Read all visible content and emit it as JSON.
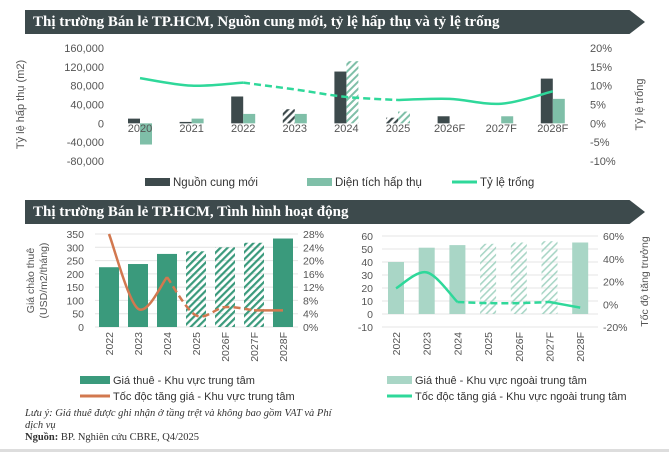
{
  "banners": {
    "top": "Thị trường Bán lẻ TP.HCM, Nguồn cung mới, tỷ lệ hấp thụ và tỷ lệ trống",
    "bottom": "Thị trường Bán lẻ TP.HCM, Tình hình hoạt động"
  },
  "notes": {
    "note": "Lưu ý: Giá thuê được ghi nhận ở tầng trệt và không bao gồm VAT và Phí dịch vụ",
    "source_label": "Nguồn:",
    "source": "BP. Nghiên cứu CBRE, Q4/2025"
  },
  "colors": {
    "dark": "#3d4a4c",
    "teal": "#7fbfa8",
    "mint": "#2fd89a",
    "green": "#3a9a7c",
    "lightgreen": "#a9d6c6",
    "orange": "#d2784f"
  },
  "chart_data": [
    {
      "type": "bar",
      "title": "Thị trường Bán lẻ TP.HCM, Nguồn cung mới, tỷ lệ hấp thụ và tỷ lệ trống",
      "categories": [
        "2020",
        "2021",
        "2022",
        "2023",
        "2024",
        "2025",
        "2026F",
        "2027F",
        "2028F"
      ],
      "ylabel": "Tỷ lệ hấp thụ (m2)",
      "y2label": "Tỷ lệ trống",
      "ylim": [
        -80000,
        160000
      ],
      "yticks": [
        "160,000",
        "120,000",
        "80,000",
        "40,000",
        "0",
        "-40,000",
        "-80,000"
      ],
      "y2lim": [
        -10,
        20
      ],
      "y2ticks": [
        "20%",
        "15%",
        "10%",
        "5%",
        "0%",
        "-5%",
        "-10%"
      ],
      "series": [
        {
          "name": "Nguồn cung mới",
          "kind": "bar",
          "values": [
            10000,
            3000,
            57000,
            30000,
            110000,
            12000,
            15000,
            0,
            95000
          ],
          "hatched": [
            false,
            false,
            false,
            true,
            false,
            true,
            false,
            false,
            false
          ]
        },
        {
          "name": "Diện tích hấp thụ",
          "kind": "bar",
          "values": [
            -45000,
            10000,
            20000,
            20000,
            132000,
            25000,
            0,
            15000,
            52000
          ],
          "hatched": [
            false,
            false,
            false,
            false,
            true,
            true,
            false,
            false,
            false
          ]
        },
        {
          "name": "Tỷ lệ trống",
          "kind": "line",
          "axis": "right",
          "values": [
            12,
            10,
            10.8,
            9,
            7,
            6.2,
            6.5,
            5.2,
            8.5
          ],
          "dashed_range": [
            2,
            5
          ]
        }
      ]
    },
    {
      "type": "bar",
      "categories": [
        "2022",
        "2023",
        "2024",
        "2025",
        "2026F",
        "2027F",
        "2028F"
      ],
      "ylabel": "Giá chào thuê (USD/m2/tháng)",
      "ylim": [
        0,
        350
      ],
      "yticks": [
        "350",
        "300",
        "250",
        "200",
        "150",
        "100",
        "50",
        "0"
      ],
      "y2lim": [
        0,
        28
      ],
      "y2ticks": [
        "28%",
        "24%",
        "20%",
        "16%",
        "12%",
        "8%",
        "4%",
        "0%"
      ],
      "series": [
        {
          "name": "Giá thuê - Khu vực trung tâm",
          "kind": "bar",
          "values": [
            225,
            237,
            275,
            285,
            300,
            317,
            333
          ],
          "hatched": [
            false,
            false,
            false,
            true,
            true,
            true,
            false
          ]
        },
        {
          "name": "Tốc độc tăng giá - Khu vực trung tâm",
          "kind": "line",
          "axis": "right",
          "values": [
            28,
            5.5,
            15,
            3.5,
            6,
            5,
            5
          ],
          "dashed_range": [
            2,
            5
          ]
        }
      ]
    },
    {
      "type": "bar",
      "categories": [
        "2022",
        "2023",
        "2024",
        "2025",
        "2026F",
        "2027F",
        "2028F"
      ],
      "ylabel": "",
      "y2label": "Tốc độ tăng trưởng",
      "ylim": [
        -10,
        60
      ],
      "yticks": [
        "60",
        "50",
        "40",
        "30",
        "20",
        "10",
        "0",
        "-10"
      ],
      "y2lim": [
        -20,
        60
      ],
      "y2ticks": [
        "60%",
        "40%",
        "20%",
        "0%",
        "-20%"
      ],
      "series": [
        {
          "name": "Giá thuê - Khu vực ngoài trung tâm",
          "kind": "bar",
          "values": [
            40,
            51,
            53,
            54,
            55,
            56,
            55
          ],
          "hatched": [
            false,
            false,
            false,
            true,
            true,
            true,
            false
          ]
        },
        {
          "name": "Tốc độc tăng giá - Khu vực ngoài trung tâm",
          "kind": "line",
          "axis": "right",
          "values": [
            14,
            28,
            2,
            1,
            1,
            2,
            -3
          ],
          "dashed_range": [
            2,
            5
          ]
        }
      ]
    }
  ]
}
